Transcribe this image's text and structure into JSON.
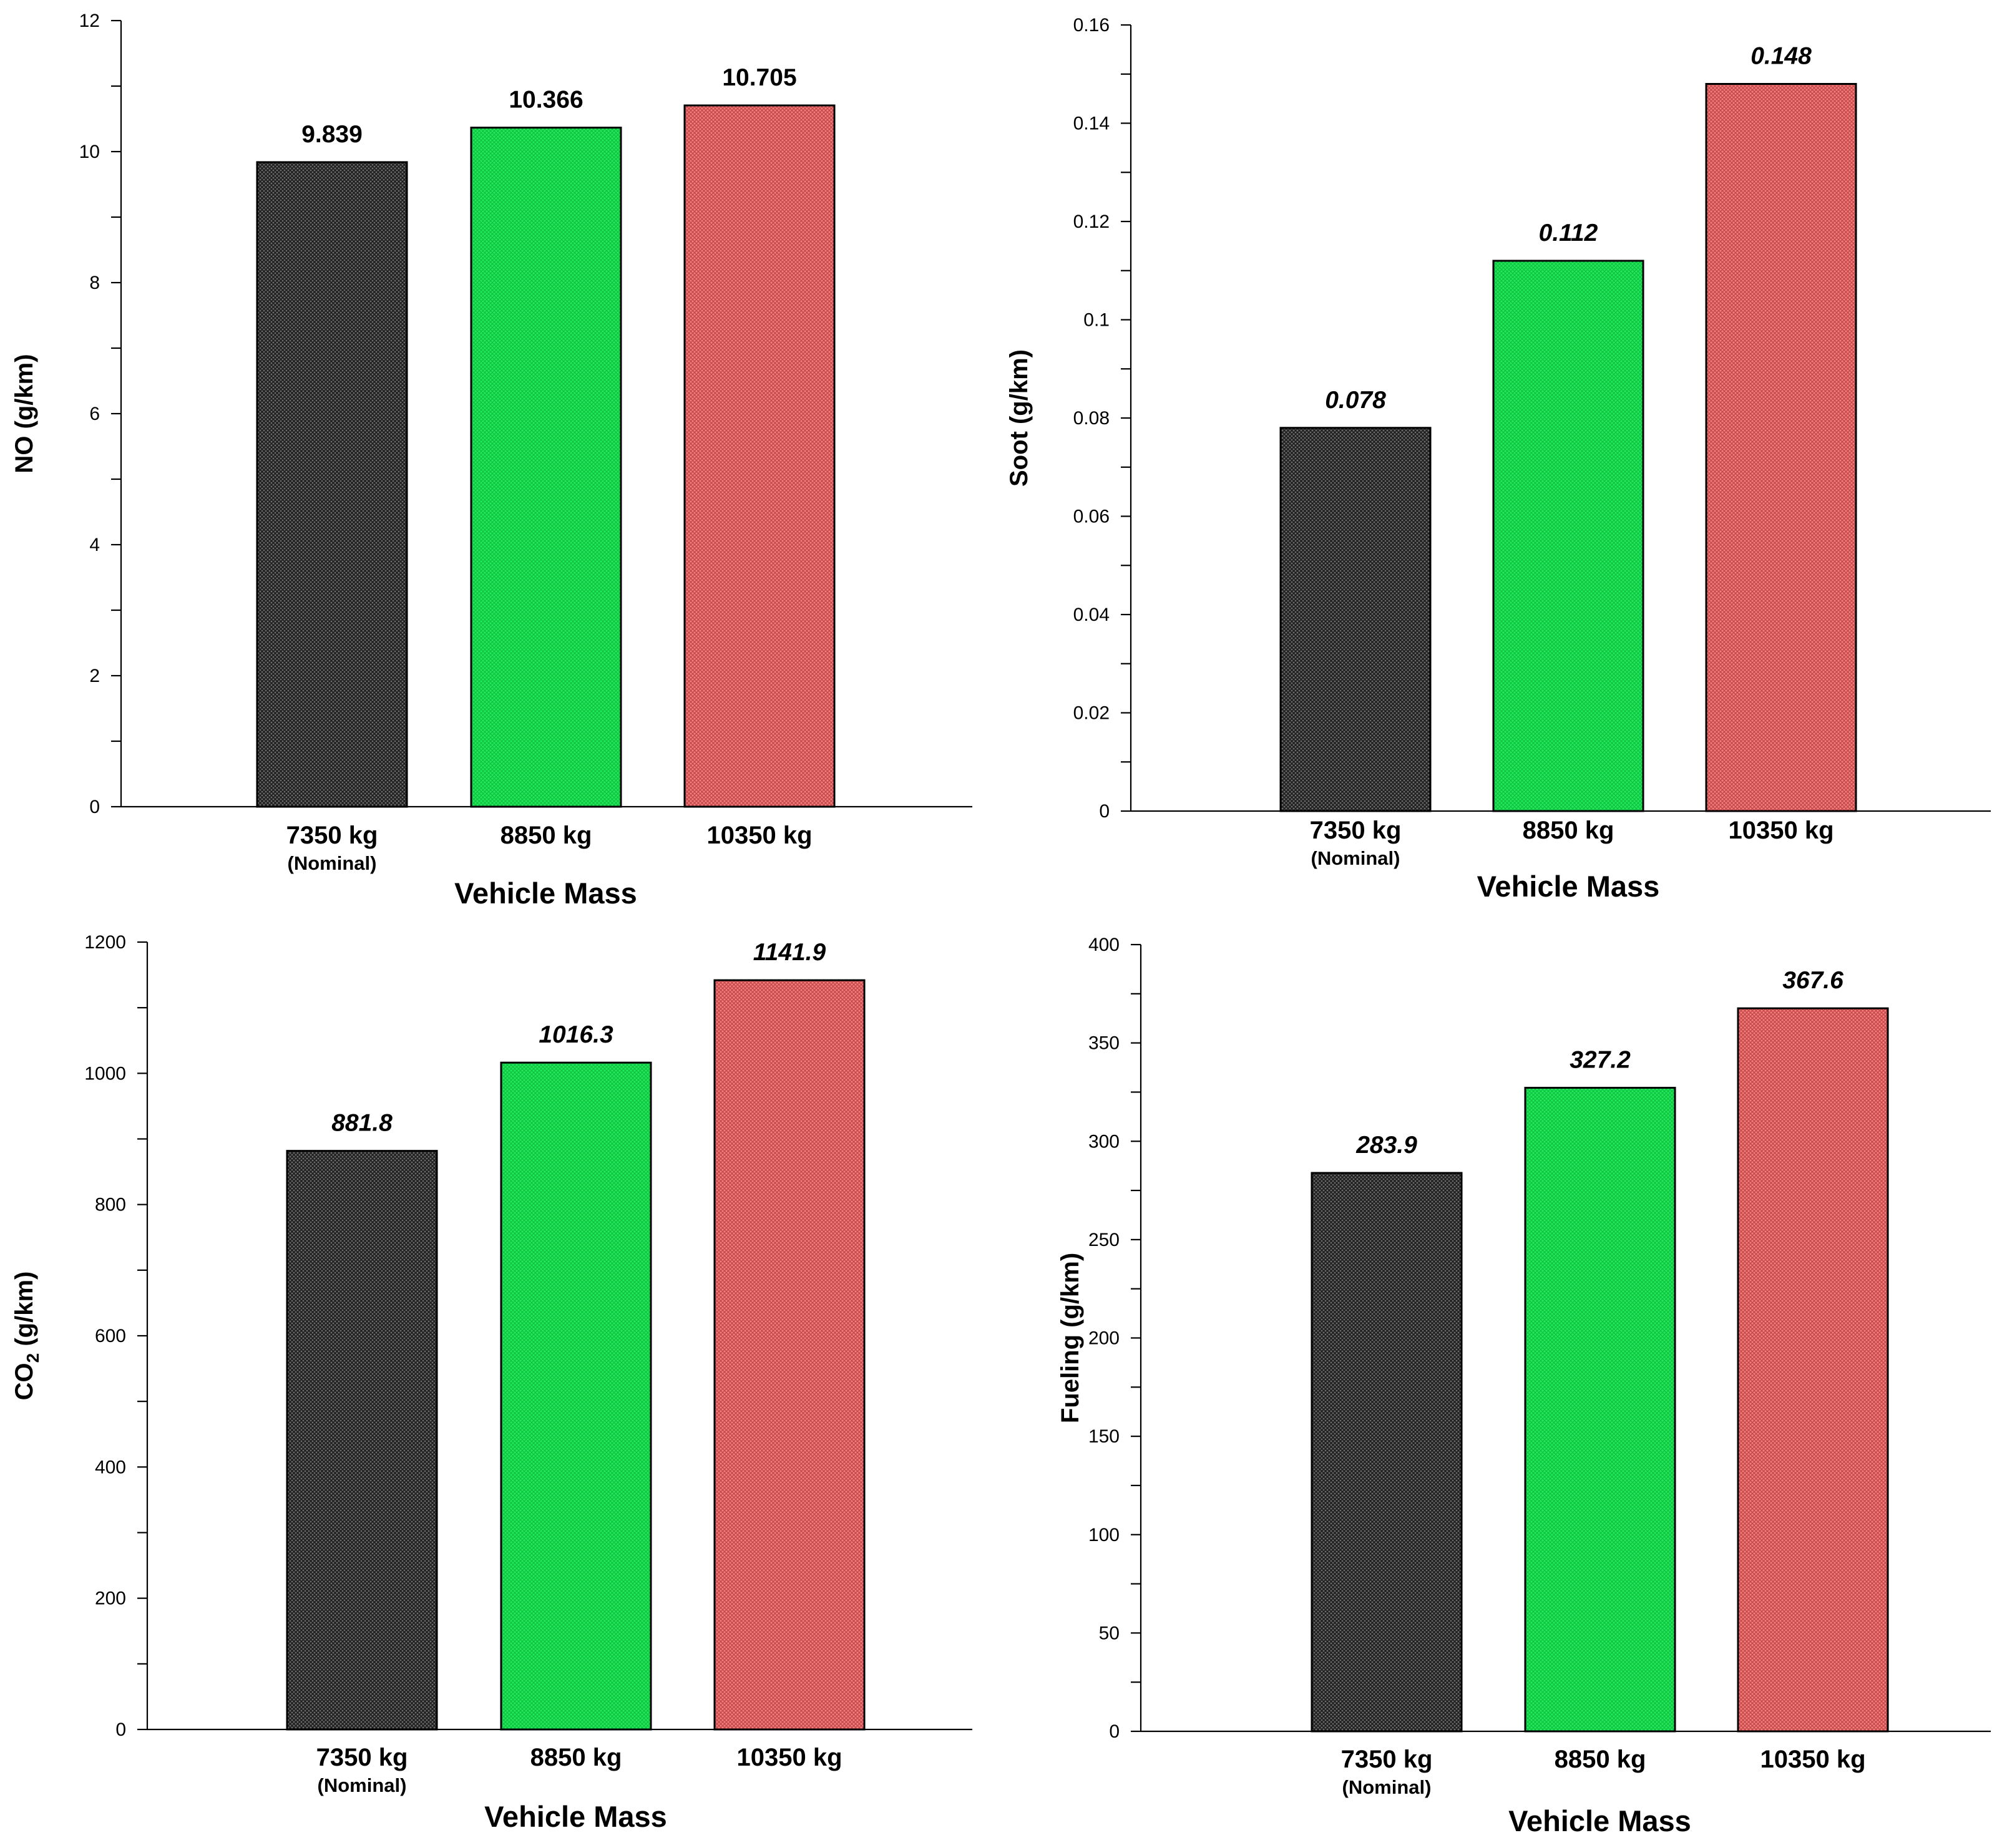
{
  "figure_title": "",
  "chart_data": [
    {
      "type": "bar",
      "title": "",
      "categories": [
        "7350 kg",
        "8850 kg",
        "10350 kg"
      ],
      "category_sublabels": [
        "(Nominal)",
        "",
        ""
      ],
      "values": [
        9.839,
        10.366,
        10.705
      ],
      "value_labels": [
        "9.839",
        "10.366",
        "10.705"
      ],
      "value_label_style": "bold",
      "xlabel": "Vehicle Mass",
      "ylabel": "NO (g/km)",
      "ylim": [
        0,
        12
      ],
      "yticks": [
        0,
        2,
        4,
        6,
        8,
        10,
        12
      ],
      "ytick_labels": [
        "0",
        "2",
        "4",
        "6",
        "8",
        "10",
        "12"
      ],
      "grid": false,
      "legend": "none",
      "colors": [
        "#3a3a3a",
        "#17e050",
        "#e06060"
      ]
    },
    {
      "type": "bar",
      "title": "",
      "categories": [
        "7350 kg",
        "8850 kg",
        "10350 kg"
      ],
      "category_sublabels": [
        "(Nominal)",
        "",
        ""
      ],
      "values": [
        0.078,
        0.112,
        0.148
      ],
      "value_labels": [
        "0.078",
        "0.112",
        "0.148"
      ],
      "value_label_style": "bold-italic",
      "xlabel": "Vehicle Mass",
      "ylabel": "Soot (g/km)",
      "ylim": [
        0,
        0.16
      ],
      "yticks": [
        0,
        0.02,
        0.04,
        0.06,
        0.08,
        0.1,
        0.12,
        0.14,
        0.16
      ],
      "ytick_labels": [
        "0",
        "0.02",
        "0.04",
        "0.06",
        "0.08",
        "0.1",
        "0.12",
        "0.14",
        "0.16"
      ],
      "grid": false,
      "legend": "none",
      "colors": [
        "#3a3a3a",
        "#17e050",
        "#e06060"
      ]
    },
    {
      "type": "bar",
      "title": "",
      "categories": [
        "7350 kg",
        "8850 kg",
        "10350 kg"
      ],
      "category_sublabels": [
        "(Nominal)",
        "",
        ""
      ],
      "values": [
        881.8,
        1016.3,
        1141.9
      ],
      "value_labels": [
        "881.8",
        "1016.3",
        "1141.9"
      ],
      "value_label_style": "bold-italic",
      "xlabel": "Vehicle Mass",
      "ylabel": "CO",
      "ylabel_subscript": "2",
      "ylabel_unit": " (g/km)",
      "ylim": [
        0,
        1200
      ],
      "yticks": [
        0,
        200,
        400,
        600,
        800,
        1000,
        1200
      ],
      "ytick_labels": [
        "0",
        "200",
        "400",
        "600",
        "800",
        "1000",
        "1200"
      ],
      "grid": false,
      "legend": "none",
      "colors": [
        "#3a3a3a",
        "#17e050",
        "#e06060"
      ]
    },
    {
      "type": "bar",
      "title": "",
      "categories": [
        "7350 kg",
        "8850 kg",
        "10350 kg"
      ],
      "category_sublabels": [
        "(Nominal)",
        "",
        ""
      ],
      "values": [
        283.9,
        327.2,
        367.6
      ],
      "value_labels": [
        "283.9",
        "327.2",
        "367.6"
      ],
      "value_label_style": "bold-italic",
      "xlabel": "Vehicle Mass",
      "ylabel": "Fueling (g/km)",
      "ylim": [
        0,
        400
      ],
      "yticks": [
        0,
        50,
        100,
        150,
        200,
        250,
        300,
        350,
        400
      ],
      "ytick_labels": [
        "0",
        "50",
        "100",
        "150",
        "200",
        "250",
        "300",
        "350",
        "400"
      ],
      "grid": false,
      "legend": "none",
      "colors": [
        "#3a3a3a",
        "#17e050",
        "#e06060"
      ]
    }
  ]
}
